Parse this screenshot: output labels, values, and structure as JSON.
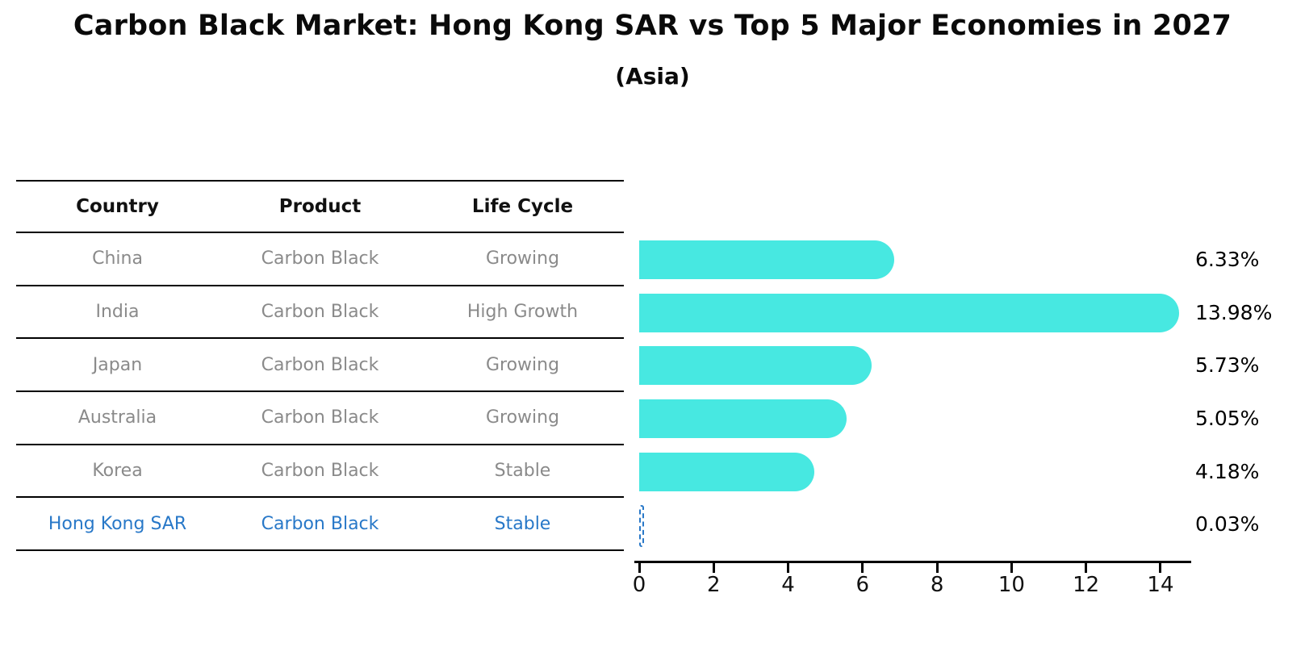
{
  "page": {
    "title": "Carbon Black Market: Hong Kong SAR vs Top 5 Major Economies in 2027",
    "subtitle": "(Asia)"
  },
  "table": {
    "headers": [
      "Country",
      "Product",
      "Life Cycle"
    ],
    "rows": [
      {
        "country": "China",
        "product": "Carbon Black",
        "life_cycle": "Growing",
        "highlight": false
      },
      {
        "country": "India",
        "product": "Carbon Black",
        "life_cycle": "High Growth",
        "highlight": false
      },
      {
        "country": "Japan",
        "product": "Carbon Black",
        "life_cycle": "Growing",
        "highlight": false
      },
      {
        "country": "Australia",
        "product": "Carbon Black",
        "life_cycle": "Growing",
        "highlight": false
      },
      {
        "country": "Korea",
        "product": "Carbon Black",
        "life_cycle": "Stable",
        "highlight": false
      },
      {
        "country": "Hong Kong SAR",
        "product": "Carbon Black",
        "life_cycle": "Stable",
        "highlight": true
      }
    ]
  },
  "chart_data": {
    "type": "bar",
    "orientation": "horizontal",
    "title": "Carbon Black Market: Hong Kong SAR vs Top 5 Major Economies in 2027",
    "subtitle": "(Asia)",
    "categories": [
      "China",
      "India",
      "Japan",
      "Australia",
      "Korea",
      "Hong Kong SAR"
    ],
    "values": [
      6.33,
      13.98,
      5.73,
      5.05,
      4.18,
      0.03
    ],
    "value_labels": [
      "6.33%",
      "13.98%",
      "5.73%",
      "5.05%",
      "4.18%",
      "0.03%"
    ],
    "xlabel": "",
    "ylabel": "",
    "xlim": [
      0,
      14.8
    ],
    "x_ticks": [
      0,
      2,
      4,
      6,
      8,
      10,
      12,
      14
    ],
    "x_tick_labels": [
      "0",
      "2",
      "4",
      "6",
      "8",
      "10",
      "12",
      "14"
    ],
    "grid": false,
    "legend": false,
    "highlight_index": 5
  },
  "colors": {
    "bar_fill": "#47e8e1",
    "highlight_blue": "#2878c8",
    "table_text_gray": "#8a8a8a",
    "text_black": "#0a0a0a",
    "background": "#ffffff"
  }
}
